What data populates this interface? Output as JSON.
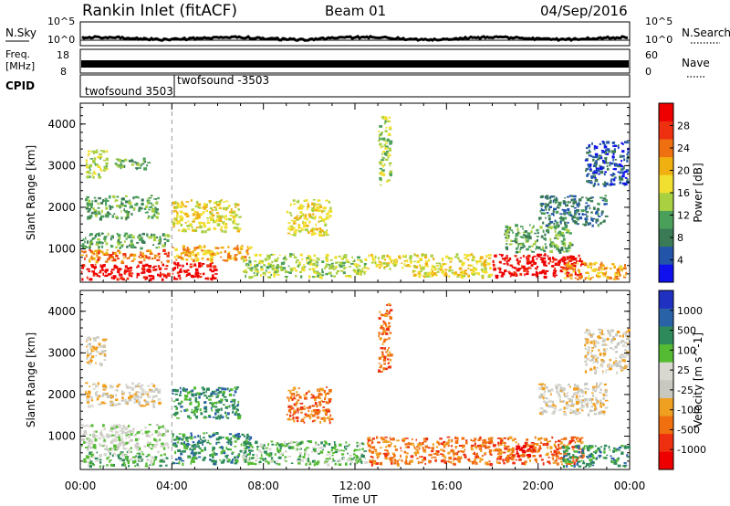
{
  "header": {
    "station": "Rankin Inlet (fitACF)",
    "beam": "Beam 01",
    "date": "04/Sep/2016"
  },
  "ancillary": {
    "nsky_label": "N.Sky",
    "nsearch_label": "N.Search",
    "freq_label_line1": "Freq.",
    "freq_label_line2": "[MHz]",
    "nave_label": "Nave",
    "cpid_label": "CPID",
    "nsky_ticks": [
      "10^5",
      "10^0"
    ],
    "freq_ticks": [
      "18",
      "8"
    ],
    "nave_ticks": [
      "60",
      "0"
    ],
    "cpid_segments": [
      {
        "label": "twofsound 3503",
        "start_hour": 0
      },
      {
        "label": "twofsound -3503",
        "start_hour": 4.0
      }
    ]
  },
  "colors": {
    "power": [
      "#1010ee",
      "#2255aa",
      "#3a7a55",
      "#4aa05a",
      "#a8d040",
      "#f2e030",
      "#f0b010",
      "#ee7010",
      "#ee3010",
      "#ee0000"
    ],
    "velocity": [
      "#ee0000",
      "#ee3010",
      "#f07010",
      "#f0a020",
      "#c8c8c0",
      "#d8d8d0",
      "#55bb33",
      "#2e8a5a",
      "#2a62a8",
      "#2030c0"
    ]
  },
  "chart_data": [
    {
      "type": "heatmap",
      "panel": "power",
      "xlabel": "",
      "ylabel": "Slant Range [km]",
      "ylim": [
        200,
        4500
      ],
      "xlim": [
        0,
        24
      ],
      "yticks": [
        1000,
        2000,
        3000,
        4000
      ],
      "colorbar_label": "Power [dB]",
      "colorbar_ticks": [
        "4",
        "8",
        "12",
        "16",
        "20",
        "24",
        "28"
      ],
      "regions": [
        {
          "x0": 0.0,
          "x1": 3.9,
          "y0": 250,
          "y1": 650,
          "level": 9
        },
        {
          "x0": 0.0,
          "x1": 3.9,
          "y0": 650,
          "y1": 1000,
          "level": 7
        },
        {
          "x0": 0.0,
          "x1": 3.9,
          "y0": 1000,
          "y1": 1400,
          "level": 3
        },
        {
          "x0": 0.2,
          "x1": 1.2,
          "y0": 2700,
          "y1": 3400,
          "level": 4
        },
        {
          "x0": 1.5,
          "x1": 3.0,
          "y0": 2900,
          "y1": 3200,
          "level": 3
        },
        {
          "x0": 0.2,
          "x1": 3.5,
          "y0": 1700,
          "y1": 2300,
          "level": 3
        },
        {
          "x0": 4.0,
          "x1": 6.0,
          "y0": 250,
          "y1": 700,
          "level": 9
        },
        {
          "x0": 4.0,
          "x1": 7.5,
          "y0": 700,
          "y1": 1100,
          "level": 6
        },
        {
          "x0": 4.0,
          "x1": 7.0,
          "y0": 1400,
          "y1": 2200,
          "level": 5
        },
        {
          "x0": 7.0,
          "x1": 12.5,
          "y0": 300,
          "y1": 900,
          "level": 4
        },
        {
          "x0": 9.0,
          "x1": 11.0,
          "y0": 1300,
          "y1": 2200,
          "level": 5
        },
        {
          "x0": 12.5,
          "x1": 14.5,
          "y0": 500,
          "y1": 900,
          "level": 5
        },
        {
          "x0": 13.0,
          "x1": 13.6,
          "y0": 2500,
          "y1": 4200,
          "level": 4
        },
        {
          "x0": 14.5,
          "x1": 18.0,
          "y0": 300,
          "y1": 900,
          "level": 5
        },
        {
          "x0": 18.0,
          "x1": 22.0,
          "y0": 300,
          "y1": 900,
          "level": 9
        },
        {
          "x0": 18.5,
          "x1": 21.5,
          "y0": 900,
          "y1": 1600,
          "level": 3
        },
        {
          "x0": 21.0,
          "x1": 24.0,
          "y0": 250,
          "y1": 700,
          "level": 6
        },
        {
          "x0": 20.0,
          "x1": 23.0,
          "y0": 1500,
          "y1": 2300,
          "level": 2
        },
        {
          "x0": 22.0,
          "x1": 24.0,
          "y0": 2500,
          "y1": 3600,
          "level": 1
        }
      ]
    },
    {
      "type": "heatmap",
      "panel": "velocity",
      "xlabel": "Time UT",
      "ylabel": "Slant Range [km]",
      "ylim": [
        200,
        4500
      ],
      "xlim": [
        0,
        24
      ],
      "yticks": [
        1000,
        2000,
        3000,
        4000
      ],
      "xticks": [
        "00:00",
        "04:00",
        "08:00",
        "12:00",
        "16:00",
        "20:00",
        "00:00"
      ],
      "colorbar_label": "Velocity [m s^-1]",
      "colorbar_ticks": [
        "-1000",
        "-500",
        "-100",
        "-25",
        "25",
        "100",
        "500",
        "1000"
      ],
      "regions": [
        {
          "x0": 0.0,
          "x1": 3.9,
          "y0": 250,
          "y1": 650,
          "level": 6
        },
        {
          "x0": 0.0,
          "x1": 3.9,
          "y0": 650,
          "y1": 1300,
          "level": 5
        },
        {
          "x0": 0.2,
          "x1": 1.2,
          "y0": 2700,
          "y1": 3400,
          "level": 4
        },
        {
          "x0": 0.2,
          "x1": 3.5,
          "y0": 1700,
          "y1": 2300,
          "level": 4
        },
        {
          "x0": 4.0,
          "x1": 7.5,
          "y0": 300,
          "y1": 1100,
          "level": 7
        },
        {
          "x0": 4.0,
          "x1": 7.0,
          "y0": 1400,
          "y1": 2200,
          "level": 7
        },
        {
          "x0": 7.0,
          "x1": 12.5,
          "y0": 300,
          "y1": 900,
          "level": 6
        },
        {
          "x0": 9.0,
          "x1": 11.0,
          "y0": 1300,
          "y1": 2200,
          "level": 2
        },
        {
          "x0": 12.5,
          "x1": 18.0,
          "y0": 300,
          "y1": 1000,
          "level": 2
        },
        {
          "x0": 13.0,
          "x1": 13.6,
          "y0": 2500,
          "y1": 4200,
          "level": 2
        },
        {
          "x0": 18.0,
          "x1": 22.0,
          "y0": 300,
          "y1": 1000,
          "level": 2
        },
        {
          "x0": 19.0,
          "x1": 20.0,
          "y0": 500,
          "y1": 800,
          "level": 0
        },
        {
          "x0": 21.0,
          "x1": 24.0,
          "y0": 250,
          "y1": 800,
          "level": 7
        },
        {
          "x0": 20.0,
          "x1": 23.0,
          "y0": 1500,
          "y1": 2300,
          "level": 4
        },
        {
          "x0": 22.0,
          "x1": 24.0,
          "y0": 2500,
          "y1": 3600,
          "level": 4
        }
      ]
    }
  ]
}
